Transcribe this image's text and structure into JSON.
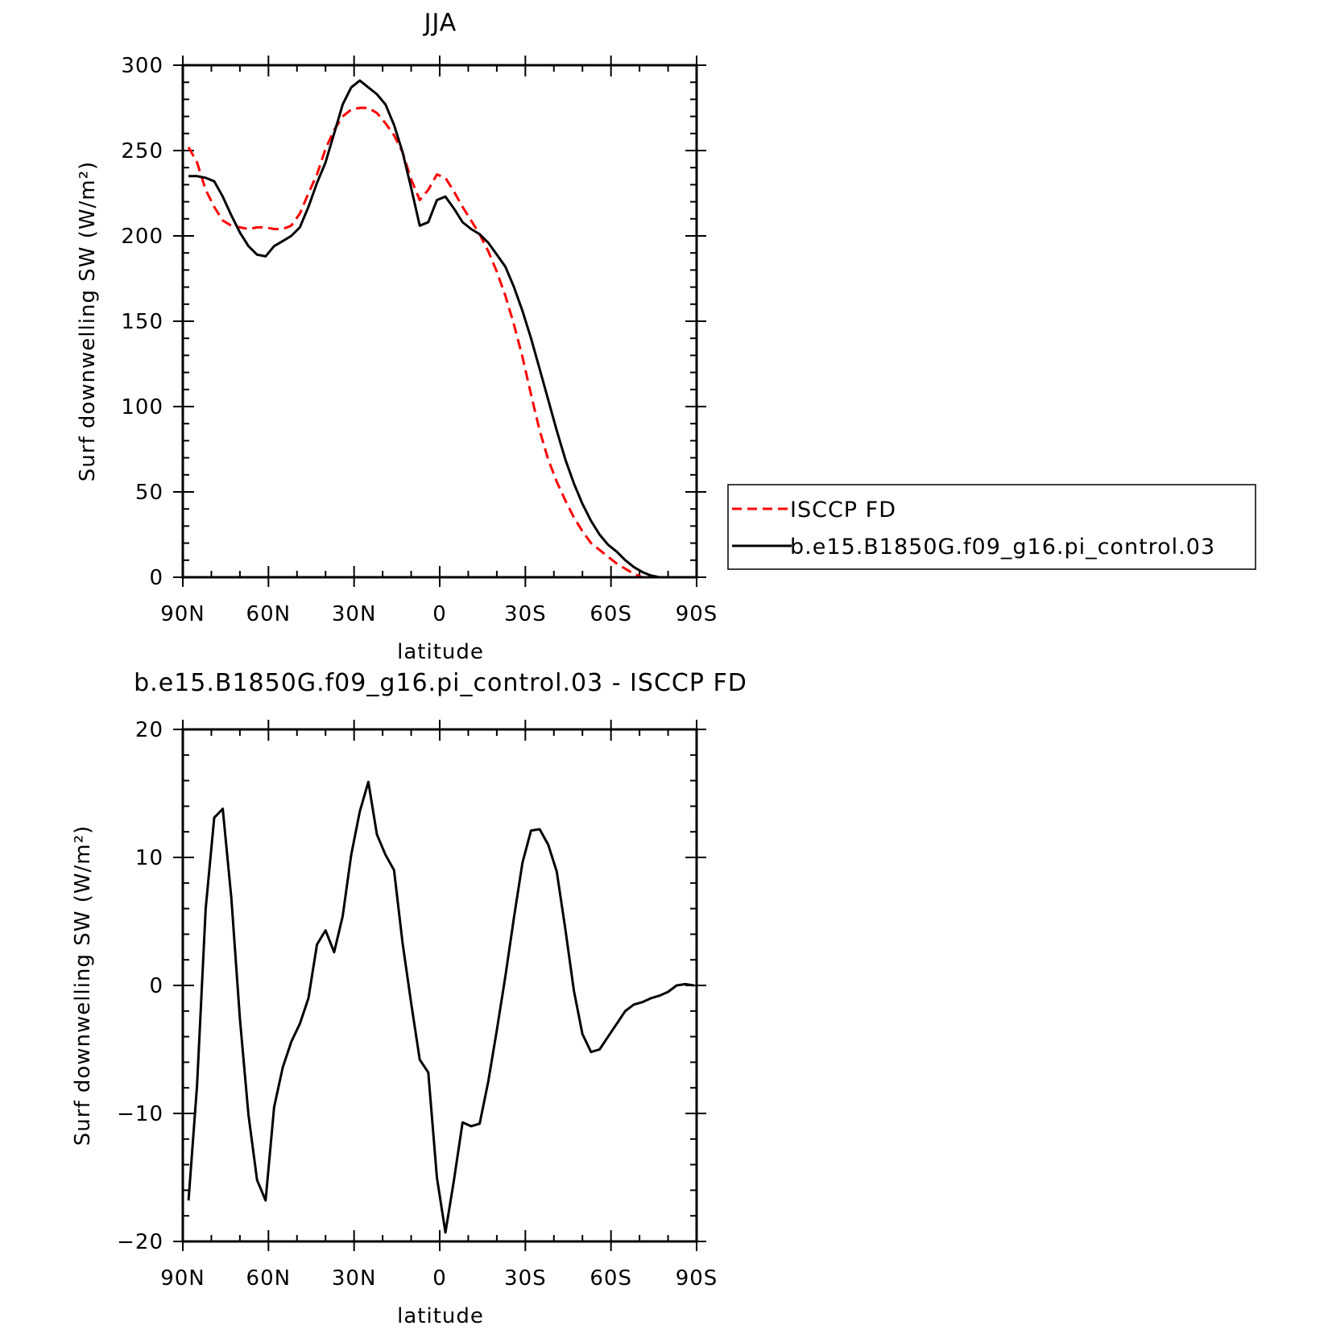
{
  "chart_data": [
    {
      "type": "line",
      "title": "JJA",
      "xlabel": "latitude",
      "ylabel": "Surf downwelling SW (W/m²)",
      "xlim": [
        90,
        -90
      ],
      "ylim": [
        0,
        300
      ],
      "x_ticks": [
        {
          "value": 90,
          "label": "90N"
        },
        {
          "value": 60,
          "label": "60N"
        },
        {
          "value": 30,
          "label": "30N"
        },
        {
          "value": 0,
          "label": "0"
        },
        {
          "value": -30,
          "label": "30S"
        },
        {
          "value": -60,
          "label": "60S"
        },
        {
          "value": -90,
          "label": "90S"
        }
      ],
      "y_ticks": [
        {
          "value": 0,
          "label": "0"
        },
        {
          "value": 50,
          "label": "50"
        },
        {
          "value": 100,
          "label": "100"
        },
        {
          "value": 150,
          "label": "150"
        },
        {
          "value": 200,
          "label": "200"
        },
        {
          "value": 250,
          "label": "250"
        },
        {
          "value": 300,
          "label": "300"
        }
      ],
      "legend": {
        "placement": "right",
        "entries": [
          {
            "label": "ISCCP FD",
            "color": "#ff0000",
            "style": "dashed"
          },
          {
            "label": "b.e15.B1850G.f09_g16.pi_control.03",
            "color": "#000000",
            "style": "solid"
          }
        ]
      },
      "series": [
        {
          "name": "ISCCP FD",
          "color": "#ff0000",
          "dash": true,
          "x": [
            88,
            85,
            82,
            79,
            76,
            73,
            70,
            67,
            64,
            61,
            58,
            55,
            52,
            49,
            46,
            43,
            40,
            37,
            34,
            31,
            28,
            25,
            22,
            19,
            16,
            13,
            10,
            7,
            4,
            1,
            -2,
            -5,
            -8,
            -11,
            -14,
            -17,
            -20,
            -23,
            -26,
            -29,
            -32,
            -35,
            -38,
            -41,
            -44,
            -47,
            -50,
            -53,
            -56,
            -59,
            -62,
            -65,
            -68,
            -71,
            -74,
            -77,
            -80,
            -83,
            -86,
            -89
          ],
          "y": [
            252,
            243,
            227,
            217,
            209,
            206,
            205,
            204,
            205,
            205,
            204,
            204,
            206,
            213,
            225,
            236,
            251,
            262,
            270,
            274,
            275,
            275,
            272,
            266,
            259,
            249,
            233,
            221,
            227,
            236,
            234,
            226,
            217,
            209,
            201,
            191,
            179,
            165,
            148,
            129,
            107,
            86,
            69,
            56,
            45,
            35,
            27,
            20,
            16,
            12,
            8,
            5,
            2,
            0,
            0,
            0,
            0,
            0,
            0,
            0
          ]
        },
        {
          "name": "b.e15.B1850G.f09_g16.pi_control.03",
          "color": "#000000",
          "dash": false,
          "x": [
            88,
            85,
            82,
            79,
            76,
            73,
            70,
            67,
            64,
            61,
            58,
            55,
            52,
            49,
            46,
            43,
            40,
            37,
            34,
            31,
            28,
            25,
            22,
            19,
            16,
            13,
            10,
            7,
            4,
            1,
            -2,
            -5,
            -8,
            -11,
            -14,
            -17,
            -20,
            -23,
            -26,
            -29,
            -32,
            -35,
            -38,
            -41,
            -44,
            -47,
            -50,
            -53,
            -56,
            -59,
            -62,
            -65,
            -68,
            -71,
            -74,
            -77,
            -80,
            -83,
            -86,
            -89
          ],
          "y": [
            235,
            235,
            234,
            232,
            223,
            212,
            202,
            194,
            189,
            188,
            194,
            197,
            200,
            205,
            217,
            231,
            243,
            260,
            277,
            287,
            291,
            287,
            283,
            277,
            265,
            249,
            228,
            206,
            208,
            221,
            223,
            216,
            208,
            204,
            201,
            196,
            189,
            182,
            170,
            156,
            140,
            122,
            104,
            86,
            69,
            55,
            43,
            33,
            25,
            19,
            15,
            10,
            6,
            3,
            1,
            0,
            0,
            0,
            0,
            0
          ]
        }
      ]
    },
    {
      "type": "line",
      "title": "b.e15.B1850G.f09_g16.pi_control.03 - ISCCP FD",
      "xlabel": "latitude",
      "ylabel": "Surf downwelling SW (W/m²)",
      "xlim": [
        90,
        -90
      ],
      "ylim": [
        -20,
        20
      ],
      "x_ticks": [
        {
          "value": 90,
          "label": "90N"
        },
        {
          "value": 60,
          "label": "60N"
        },
        {
          "value": 30,
          "label": "30N"
        },
        {
          "value": 0,
          "label": "0"
        },
        {
          "value": -30,
          "label": "30S"
        },
        {
          "value": -60,
          "label": "60S"
        },
        {
          "value": -90,
          "label": "90S"
        }
      ],
      "y_ticks": [
        {
          "value": -20,
          "label": "−20"
        },
        {
          "value": -10,
          "label": "−10"
        },
        {
          "value": 0,
          "label": "0"
        },
        {
          "value": 10,
          "label": "10"
        },
        {
          "value": 20,
          "label": "20"
        }
      ],
      "series": [
        {
          "color": "#000000",
          "dash": false,
          "x": [
            88,
            85,
            82,
            79,
            76,
            73,
            70,
            67,
            64,
            61,
            58,
            55,
            52,
            49,
            46,
            43,
            40,
            37,
            34,
            31,
            28,
            25,
            22,
            19,
            16,
            13,
            10,
            7,
            4,
            1,
            -2,
            -5,
            -8,
            -11,
            -14,
            -17,
            -20,
            -23,
            -26,
            -29,
            -32,
            -35,
            -38,
            -41,
            -44,
            -47,
            -50,
            -53,
            -56,
            -59,
            -62,
            -65,
            -68,
            -71,
            -74,
            -77,
            -80,
            -83,
            -86,
            -89
          ],
          "y": [
            -16.8,
            -7.8,
            6,
            13.1,
            13.8,
            6.8,
            -2.6,
            -10.1,
            -15.2,
            -16.8,
            -9.5,
            -6.4,
            -4.4,
            -3,
            -1,
            3.2,
            4.3,
            2.6,
            5.4,
            10.2,
            13.6,
            15.9,
            11.8,
            10.2,
            9,
            3.3,
            -1.4,
            -5.8,
            -6.8,
            -15,
            -19.3,
            -15.2,
            -10.7,
            -11,
            -10.8,
            -7.5,
            -3.5,
            0.7,
            5.3,
            9.6,
            12.1,
            12.2,
            11,
            8.9,
            4.4,
            -0.4,
            -3.8,
            -5.2,
            -5,
            -4,
            -3,
            -2,
            -1.5,
            -1.3,
            -1,
            -0.8,
            -0.5,
            0,
            0.1,
            0
          ]
        }
      ]
    }
  ]
}
